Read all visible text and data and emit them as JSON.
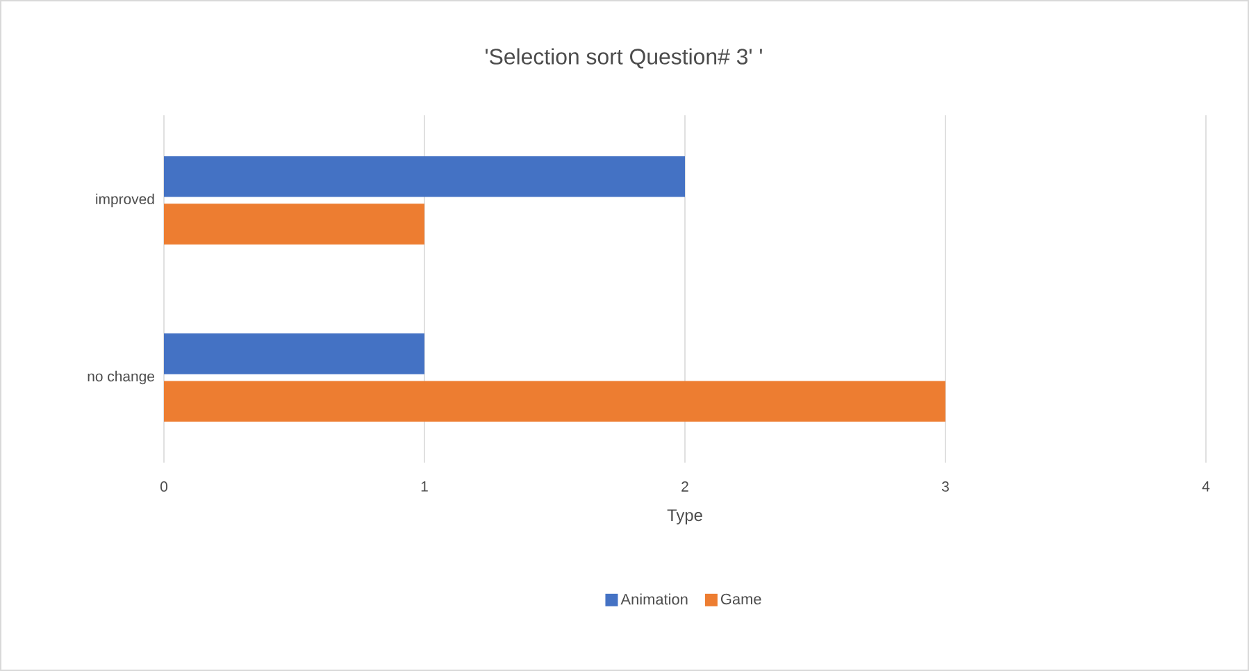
{
  "chart_data": {
    "type": "bar",
    "orientation": "horizontal",
    "title": "'Selection sort Question# 3' '",
    "xlabel": "Type",
    "categories": [
      "improved",
      "no change"
    ],
    "series": [
      {
        "name": "Animation",
        "color": "#4472c4",
        "values": [
          2,
          1
        ]
      },
      {
        "name": "Game",
        "color": "#ed7d31",
        "values": [
          1,
          3
        ]
      }
    ],
    "xlim": [
      0,
      4
    ],
    "xticks": [
      0,
      1,
      2,
      3,
      4
    ],
    "grid": "x",
    "legend": "bottom"
  }
}
